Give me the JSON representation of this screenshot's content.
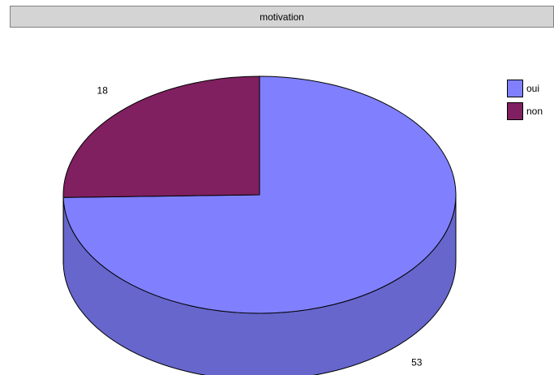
{
  "chart_data": {
    "type": "pie",
    "title": "motivation",
    "categories": [
      "oui",
      "non"
    ],
    "values": [
      53,
      18
    ],
    "colors": [
      "#8080ff",
      "#802060"
    ],
    "side_colors": [
      "#6666cc",
      "#661a4d"
    ],
    "legend_position": "right",
    "three_d": true
  }
}
